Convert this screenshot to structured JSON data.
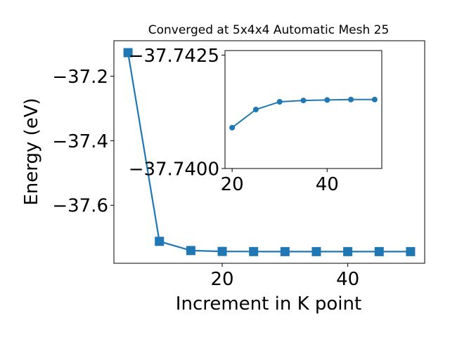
{
  "chart_data": [
    {
      "type": "line",
      "title": "Converged at 5x4x4 Automatic Mesh 25",
      "xlabel": "Increment in K point",
      "ylabel": "Energy (eV)",
      "x": [
        5,
        10,
        15,
        20,
        25,
        30,
        35,
        40,
        45,
        50
      ],
      "series": [
        {
          "values": [
            -37.127,
            -37.712,
            -37.7405,
            -37.7433,
            -37.7437,
            -37.7438,
            -37.7438,
            -37.7438,
            -37.7438,
            -37.7438
          ]
        }
      ],
      "xlim": [
        2.75,
        52.25
      ],
      "ylim": [
        -37.78,
        -37.09
      ],
      "xticks": [
        20,
        40
      ],
      "xtick_labels": [
        "20",
        "40"
      ],
      "yticks": [
        -37.2,
        -37.4,
        -37.6
      ],
      "ytick_labels": [
        "−37.2",
        "−37.4",
        "−37.6"
      ],
      "marker": "square",
      "color": "#1f77b4",
      "grid": false
    },
    {
      "type": "line",
      "title": "",
      "xlabel": "",
      "ylabel": "",
      "x": [
        20,
        25,
        30,
        35,
        40,
        45,
        50
      ],
      "series": [
        {
          "values": [
            -37.7409,
            -37.7413,
            -37.74147,
            -37.7415,
            -37.74151,
            -37.74152,
            -37.74152
          ]
        }
      ],
      "xlim": [
        18.5,
        51.5
      ],
      "ylim": [
        -37.74,
        -37.7426
      ],
      "y_inverted": true,
      "xticks": [
        20,
        40
      ],
      "xtick_labels": [
        "20",
        "40"
      ],
      "yticks": [
        -37.7425,
        -37.74
      ],
      "ytick_labels": [
        "−37.7425",
        "−37.7400"
      ],
      "marker": "circle",
      "color": "#1f77b4",
      "grid": false
    }
  ]
}
